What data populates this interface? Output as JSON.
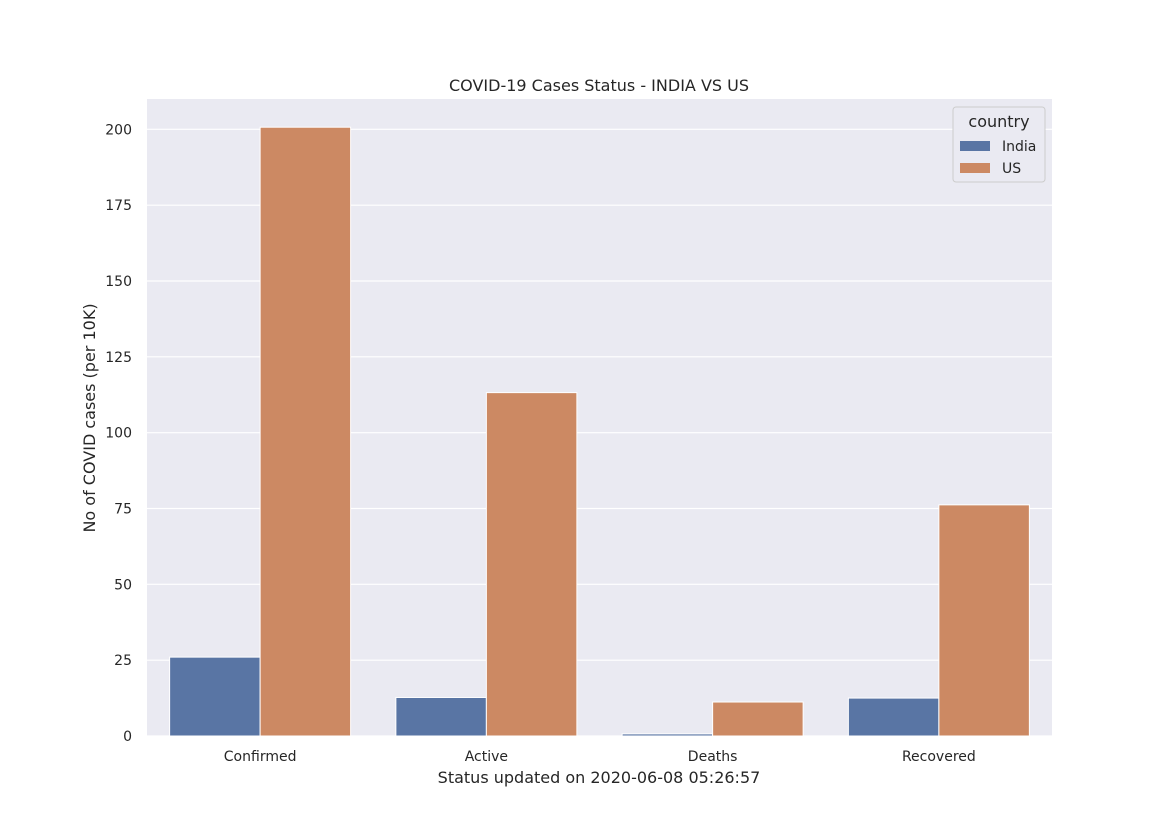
{
  "chart_data": {
    "type": "bar",
    "title": "COVID-19 Cases Status - INDIA VS US",
    "xlabel": "Status updated on 2020-06-08 05:26:57",
    "ylabel": "No of COVID cases (per 10K)",
    "categories": [
      "Confirmed",
      "Active",
      "Deaths",
      "Recovered"
    ],
    "series": [
      {
        "name": "India",
        "color": "#5975a4",
        "values": [
          26.0,
          12.7,
          0.7,
          12.5
        ]
      },
      {
        "name": "US",
        "color": "#cc8963",
        "values": [
          200.7,
          113.2,
          11.2,
          76.2
        ]
      }
    ],
    "ylim": [
      0,
      210
    ],
    "yticks": [
      0,
      25,
      50,
      75,
      100,
      125,
      150,
      175,
      200
    ],
    "grid": true,
    "legend": {
      "title": "country",
      "position": "top-right"
    },
    "colors": {
      "plot_background": "#eaeaf2",
      "grid": "#ffffff"
    }
  }
}
